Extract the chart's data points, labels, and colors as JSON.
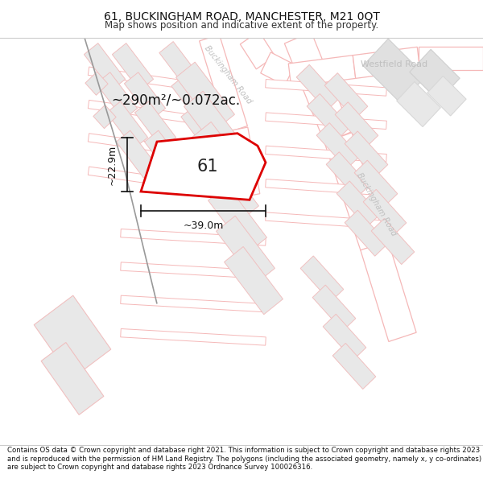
{
  "title": "61, BUCKINGHAM ROAD, MANCHESTER, M21 0QT",
  "subtitle": "Map shows position and indicative extent of the property.",
  "footer": "Contains OS data © Crown copyright and database right 2021. This information is subject to Crown copyright and database rights 2023 and is reproduced with the permission of HM Land Registry. The polygons (including the associated geometry, namely x, y co-ordinates) are subject to Crown copyright and database rights 2023 Ordnance Survey 100026316.",
  "title_fontsize": 10,
  "subtitle_fontsize": 8.5,
  "footer_fontsize": 6.2,
  "label_61": "61",
  "area_label": "~290m²/~0.072ac.",
  "width_label": "~39.0m",
  "height_label": "~22.9m",
  "road_label_upper": "Buckingham Road",
  "road_label_right": "Buckingham Road",
  "road_label_top": "Westfield Road",
  "map_bg": "#ffffff",
  "road_outline_color": "#f5b8b8",
  "road_fill_color": "#ffffff",
  "building_fill": "#e8e8e8",
  "building_edge": "#f0c0c0",
  "plot_fill": "#ffffff",
  "plot_edge": "#dd0000",
  "dim_color": "#111111",
  "road_label_color": "#c0c0c0",
  "text_color": "#222222",
  "diagonal_road_color": "#888888"
}
